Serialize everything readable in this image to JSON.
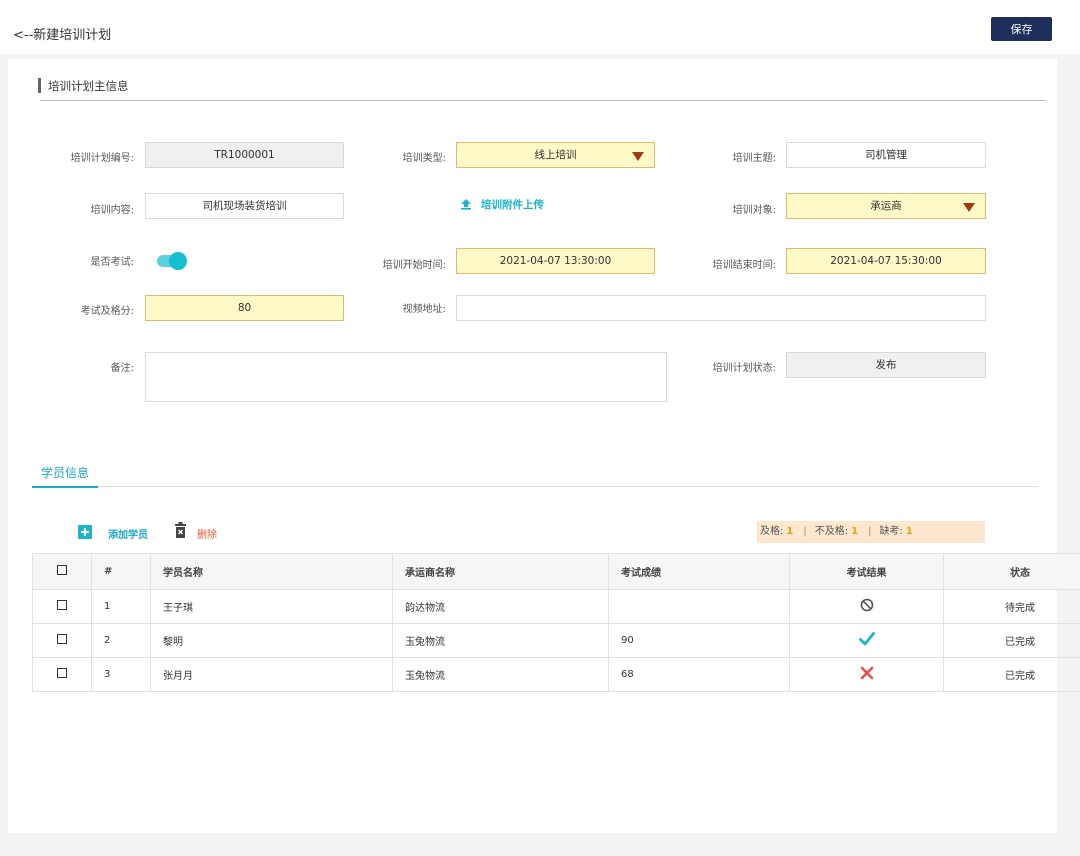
{
  "header": {
    "title": "<--新建培训计划",
    "save_label": "保存"
  },
  "section": {
    "title": "培训计划主信息"
  },
  "form": {
    "plan_no": {
      "label": "培训计划编号:",
      "value": "TR1000001"
    },
    "type": {
      "label": "培训类型:",
      "value": "线上培训"
    },
    "topic": {
      "label": "培训主题:",
      "value": "司机管理"
    },
    "content": {
      "label": "培训内容:",
      "value": "司机现场装货培训"
    },
    "upload_label": "培训附件上传",
    "target": {
      "label": "培训对象:",
      "value": "承运商"
    },
    "exam": {
      "label": "是否考试:",
      "on": true
    },
    "start": {
      "label": "培训开始时间:",
      "value": "2021-04-07 13:30:00"
    },
    "end": {
      "label": "培训结束时间:",
      "value": "2021-04-07 15:30:00"
    },
    "pass_score": {
      "label": "考试及格分:",
      "value": "80"
    },
    "video": {
      "label": "视频地址:",
      "value": ""
    },
    "remark": {
      "label": "备注:",
      "value": ""
    },
    "status": {
      "label": "培训计划状态:",
      "value": "发布"
    }
  },
  "tab": {
    "label": "学员信息"
  },
  "toolbar": {
    "add_label": "添加学员",
    "delete_label": "删除"
  },
  "stats": {
    "pass_label": "及格:",
    "pass": "1",
    "fail_label": "不及格:",
    "fail": "1",
    "absent_label": "缺考:",
    "absent": "1"
  },
  "table": {
    "headers": [
      "#",
      "学员名称",
      "承运商名称",
      "考试成绩",
      "考试结果",
      "状态"
    ],
    "rows": [
      {
        "no": "1",
        "name": "王子琪",
        "carrier": "韵达物流",
        "score": "",
        "result": "none",
        "status": "待完成"
      },
      {
        "no": "2",
        "name": "黎明",
        "carrier": "玉兔物流",
        "score": "90",
        "result": "pass",
        "status": "已完成"
      },
      {
        "no": "3",
        "name": "张月月",
        "carrier": "玉兔物流",
        "score": "68",
        "result": "fail",
        "status": "已完成"
      }
    ]
  },
  "colors": {
    "accent": "#1aa9c4",
    "save_button": "#1e2f5c",
    "highlight_field": "#fff9c8",
    "delete": "#e05a3a"
  }
}
